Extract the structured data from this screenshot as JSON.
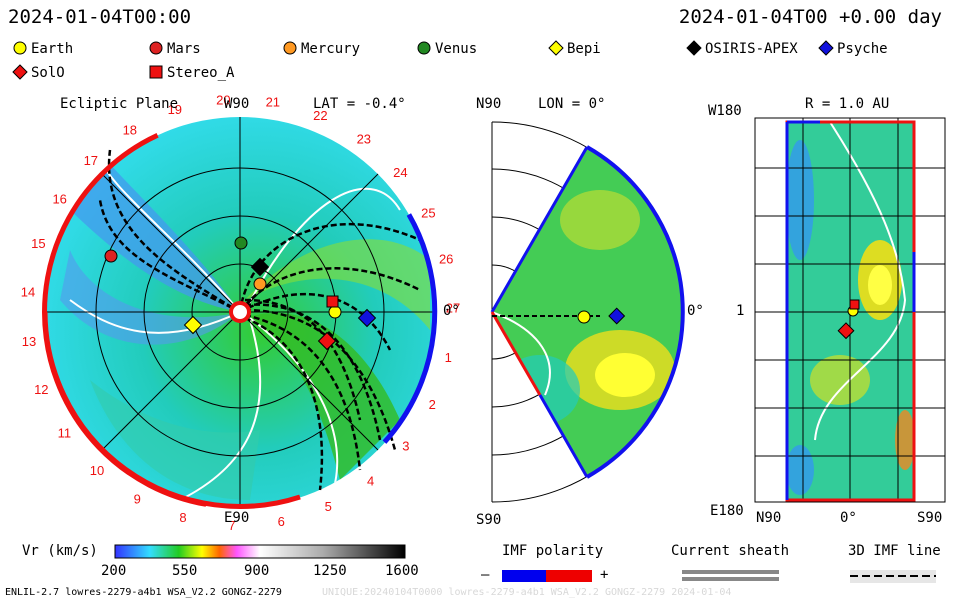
{
  "header": {
    "left_time": "2024-01-04T00:00",
    "right_time": "2024-01-04T00 +0.00 day"
  },
  "legend": [
    {
      "label": "Earth",
      "shape": "circle",
      "color": "#ffff00"
    },
    {
      "label": "Mars",
      "shape": "circle",
      "color": "#dd2222"
    },
    {
      "label": "Mercury",
      "shape": "circle",
      "color": "#ff9922"
    },
    {
      "label": "Venus",
      "shape": "circle",
      "color": "#228822"
    },
    {
      "label": "Bepi",
      "shape": "diamond",
      "color": "#ffff00"
    },
    {
      "label": "OSIRIS-APEX",
      "shape": "diamond",
      "color": "#000000"
    },
    {
      "label": "Psyche",
      "shape": "diamond",
      "color": "#1111dd"
    },
    {
      "label": "SolO",
      "shape": "diamond",
      "color": "#ee1111"
    },
    {
      "label": "Stereo_A",
      "shape": "square",
      "color": "#ee1111"
    }
  ],
  "ecliptic": {
    "title": "Ecliptic Plane",
    "top_label": "W90",
    "bottom_label": "E90",
    "right_label": "0°",
    "lat": "LAT = -0.4°",
    "carrington_numbers": [
      "1",
      "2",
      "3",
      "4",
      "5",
      "6",
      "7",
      "8",
      "9",
      "10",
      "11",
      "12",
      "13",
      "14",
      "15",
      "16",
      "17",
      "18",
      "19",
      "20",
      "21",
      "22",
      "23",
      "24",
      "25",
      "26",
      "27"
    ]
  },
  "meridional": {
    "top_left": "N90",
    "lon": "LON = 0°",
    "bottom_left": "S90",
    "right_label": "0°"
  },
  "radial": {
    "title": "R = 1.0 AU",
    "top_left": "W180",
    "bottom_left": "E180",
    "left_tick": "1",
    "bottom_n": "N90",
    "bottom_0": "0°",
    "bottom_s": "S90"
  },
  "colorbar": {
    "label": "Vr (km/s)",
    "ticks": [
      "200",
      "550",
      "900",
      "1250",
      "1600"
    ]
  },
  "imf": {
    "label": "IMF polarity",
    "minus": "–",
    "plus": "+",
    "neg_color": "#0000ee",
    "pos_color": "#ee0000"
  },
  "sheath": {
    "label": "Current sheath"
  },
  "imfline": {
    "label": "3D IMF line"
  },
  "footer": {
    "model": "ENLIL-2.7 lowres-2279-a4b1 WSA_V2.2 GONGZ-2279",
    "watermark": "UNIQUE:20240104T0000 lowres-2279-a4b1 WSA_V2.2 GONGZ-2279 2024-01-04"
  }
}
